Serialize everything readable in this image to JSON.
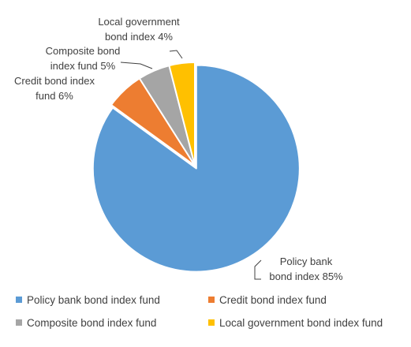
{
  "chart_data": {
    "type": "pie",
    "title": "",
    "start_angle_deg": 0,
    "direction": "clockwise",
    "exploded_slice": "Policy bank bond index fund",
    "slices": [
      {
        "name": "Policy bank bond index fund",
        "value": 85,
        "color": "#5B9BD5",
        "label_lines": [
          "Policy bank",
          "bond index 85%"
        ]
      },
      {
        "name": "Credit bond index fund",
        "value": 6,
        "color": "#ED7D31",
        "label_lines": [
          "Credit bond index",
          "fund 6%"
        ]
      },
      {
        "name": "Composite bond index fund",
        "value": 5,
        "color": "#A5A5A5",
        "label_lines": [
          "Composite bond",
          "index fund 5%"
        ]
      },
      {
        "name": "Local government bond index fund",
        "value": 4,
        "color": "#FFC000",
        "label_lines": [
          "Local government",
          "bond index 4%"
        ]
      }
    ],
    "legend": {
      "position": "bottom",
      "entries": [
        "Policy bank bond index fund",
        "Credit bond index fund",
        "Composite bond index fund",
        "Local government bond index fund"
      ]
    }
  }
}
